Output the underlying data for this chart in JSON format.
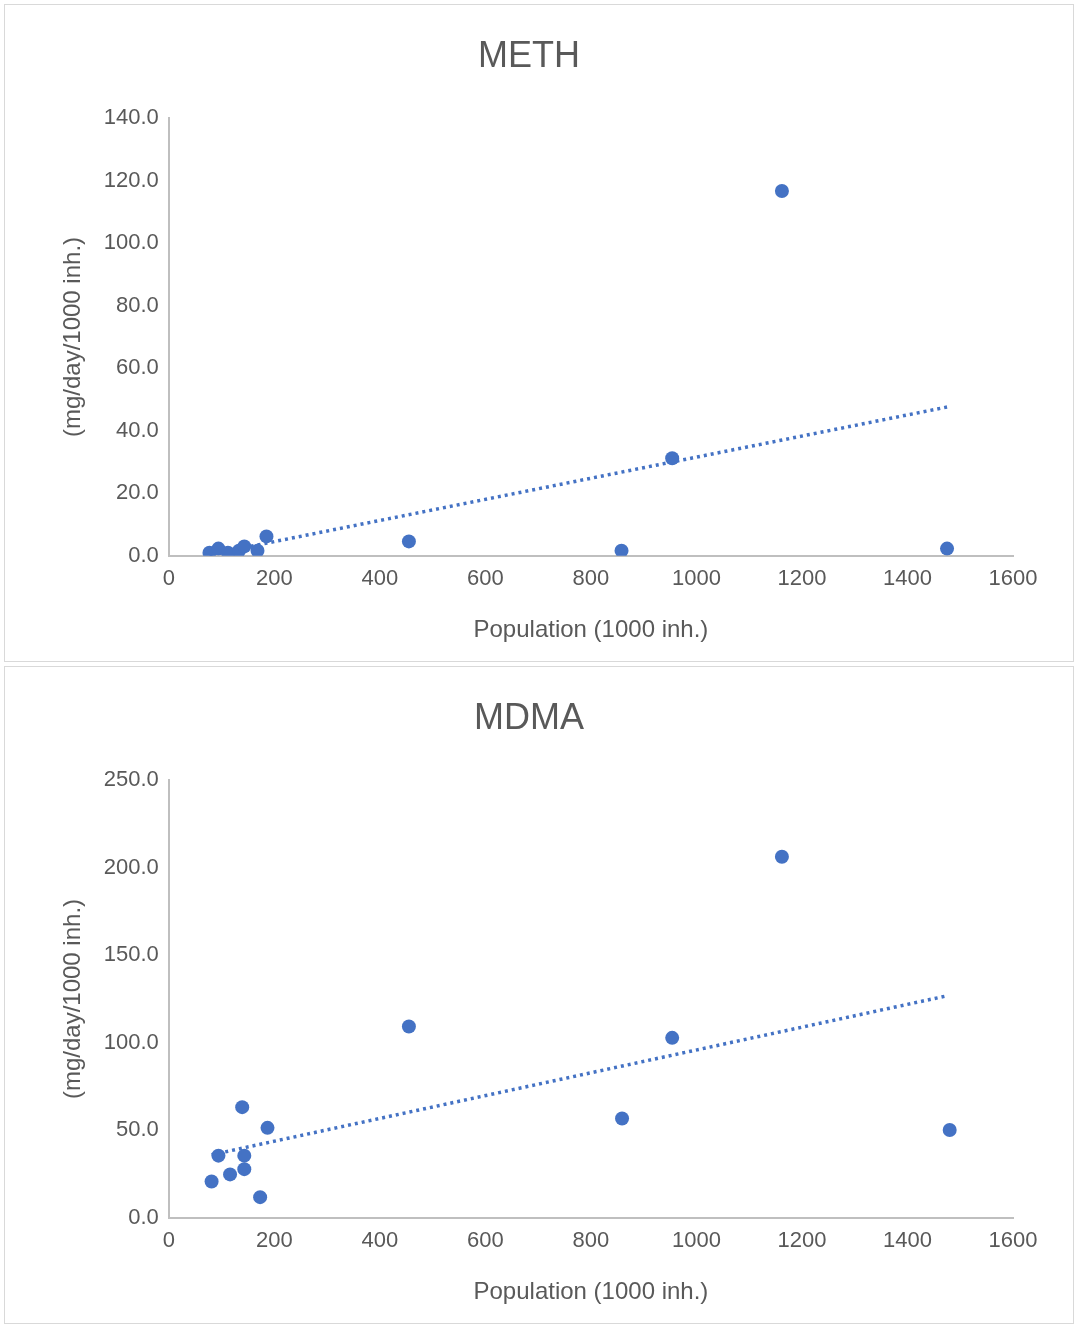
{
  "chart_data": [
    {
      "type": "scatter",
      "title": "METH",
      "xlabel": "Population (1000 inh.)",
      "ylabel": "(mg/day/1000 inh.)",
      "xlim": [
        0,
        1600
      ],
      "xticks": [
        0,
        200,
        400,
        600,
        800,
        1000,
        1200,
        1400,
        1600
      ],
      "ylim": [
        0,
        140
      ],
      "yticks": [
        {
          "value": 0,
          "label": "0.0"
        },
        {
          "value": 20,
          "label": "20.0"
        },
        {
          "value": 40,
          "label": "40.0"
        },
        {
          "value": 60,
          "label": "60.0"
        },
        {
          "value": 80,
          "label": "80.0"
        },
        {
          "value": 100,
          "label": "100.0"
        },
        {
          "value": 120,
          "label": "120.0"
        },
        {
          "value": 140,
          "label": "140.0"
        }
      ],
      "grid": false,
      "legend": false,
      "marker": "circle",
      "series": [
        {
          "color": "#4472c4",
          "x": [
            77,
            94,
            112,
            133,
            143,
            168,
            185,
            455,
            858,
            954,
            1162,
            1475
          ],
          "values": [
            1.0,
            2.3,
            1.0,
            1.6,
            3.0,
            1.6,
            6.2,
            4.6,
            1.6,
            31.2,
            116.7,
            2.3
          ]
        },
        {
          "type": "line",
          "line_style": "dotted",
          "marker": "none",
          "color": "#4472c4",
          "x": [
            77,
            1475
          ],
          "values": [
            0.4,
            47.6
          ]
        }
      ]
    },
    {
      "type": "scatter",
      "title": "MDMA",
      "xlabel": "Population (1000 inh.)",
      "ylabel": "(mg/day/1000 inh.)",
      "xlim": [
        0,
        1600
      ],
      "xticks": [
        0,
        200,
        400,
        600,
        800,
        1000,
        1200,
        1400,
        1600
      ],
      "ylim": [
        0,
        250
      ],
      "yticks": [
        {
          "value": 0,
          "label": "0.0"
        },
        {
          "value": 50,
          "label": "50.0"
        },
        {
          "value": 100,
          "label": "100.0"
        },
        {
          "value": 150,
          "label": "150.0"
        },
        {
          "value": 200,
          "label": "200.0"
        },
        {
          "value": 250,
          "label": "250.0"
        }
      ],
      "grid": false,
      "legend": false,
      "marker": "circle",
      "series": [
        {
          "color": "#4472c4",
          "x": [
            81,
            94,
            116,
            139,
            143,
            143,
            173,
            187,
            455,
            859,
            954,
            1162,
            1480
          ],
          "values": [
            20.7,
            35.5,
            24.8,
            63.2,
            35.5,
            27.8,
            11.8,
            51.4,
            109.3,
            56.7,
            102.8,
            206.3,
            50.2
          ]
        },
        {
          "type": "line",
          "line_style": "dotted",
          "marker": "none",
          "color": "#4472c4",
          "x": [
            81,
            1470
          ],
          "values": [
            36,
            126.5
          ]
        }
      ]
    }
  ]
}
